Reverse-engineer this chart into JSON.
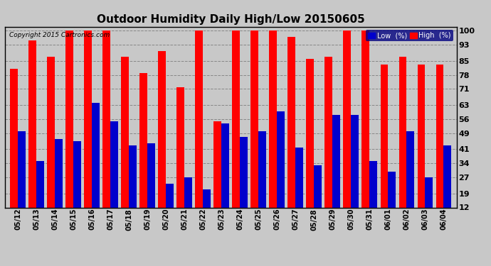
{
  "title": "Outdoor Humidity Daily High/Low 20150605",
  "copyright": "Copyright 2015 Cartronics.com",
  "dates": [
    "05/12",
    "05/13",
    "05/14",
    "05/15",
    "05/16",
    "05/17",
    "05/18",
    "05/19",
    "05/20",
    "05/21",
    "05/22",
    "05/23",
    "05/24",
    "05/25",
    "05/26",
    "05/27",
    "05/28",
    "05/29",
    "05/30",
    "05/31",
    "06/01",
    "06/02",
    "06/03",
    "06/04"
  ],
  "high": [
    81,
    95,
    87,
    100,
    100,
    100,
    87,
    79,
    90,
    72,
    100,
    55,
    100,
    100,
    100,
    97,
    86,
    87,
    100,
    100,
    83,
    87,
    83,
    83
  ],
  "low": [
    50,
    35,
    46,
    45,
    64,
    55,
    43,
    44,
    24,
    27,
    21,
    54,
    47,
    50,
    60,
    42,
    33,
    58,
    58,
    35,
    30,
    50,
    27,
    43
  ],
  "high_color": "#ff0000",
  "low_color": "#0000cc",
  "bg_color": "#c8c8c8",
  "plot_bg": "#c8c8c8",
  "grid_color": "#888888",
  "title_fontsize": 11,
  "ylabel_right_ticks": [
    12,
    19,
    27,
    34,
    41,
    49,
    56,
    63,
    71,
    78,
    85,
    93,
    100
  ],
  "ymin": 12,
  "ymax": 102,
  "bar_width": 0.42
}
